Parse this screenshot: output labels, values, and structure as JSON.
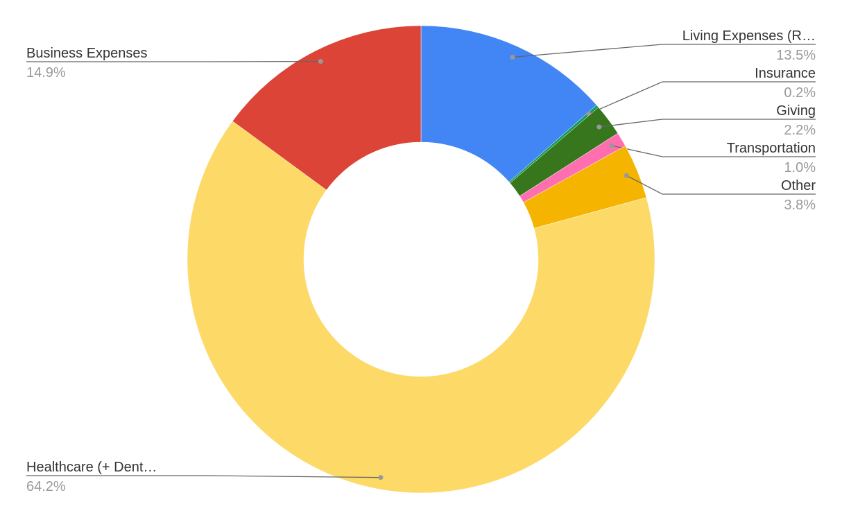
{
  "chart_data": {
    "type": "pie",
    "donut": true,
    "categories": [
      "Living Expenses (R…",
      "Insurance",
      "Giving",
      "Transportation",
      "Other",
      "Healthcare (+ Dent…",
      "Business Expenses"
    ],
    "values": [
      13.5,
      0.2,
      2.2,
      1.0,
      3.8,
      64.2,
      14.9
    ],
    "value_labels": [
      "13.5%",
      "0.2%",
      "2.2%",
      "1.0%",
      "3.8%",
      "64.2%",
      "14.9%"
    ],
    "colors": [
      "#4285f4",
      "#0f9d58",
      "#38761d",
      "#ff6fb0",
      "#f4b400",
      "#fdd967",
      "#db4437"
    ]
  }
}
